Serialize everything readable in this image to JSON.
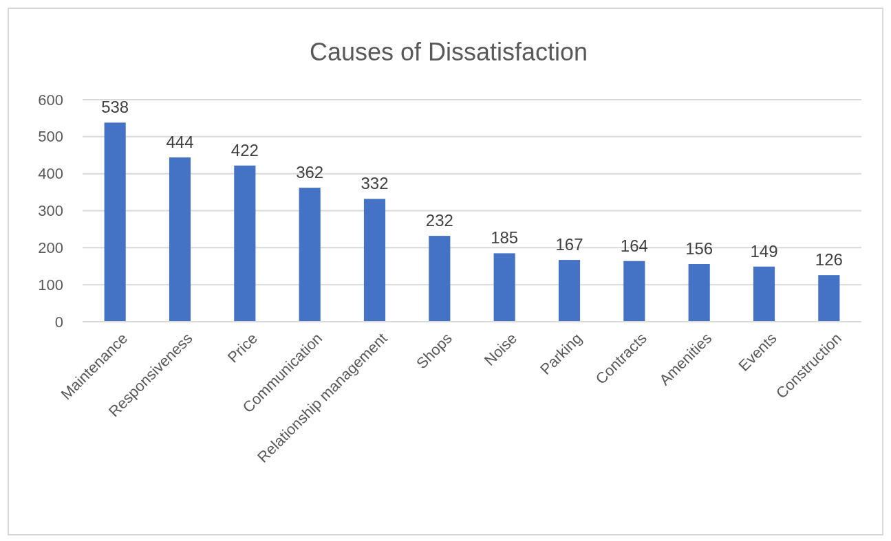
{
  "chart_data": {
    "type": "bar",
    "title": "Causes of Dissatisfaction",
    "categories": [
      "Maintenance",
      "Responsiveness",
      "Price",
      "Communication",
      "Relationship management",
      "Shops",
      "Noise",
      "Parking",
      "Contracts",
      "Amenities",
      "Events",
      "Construction"
    ],
    "values": [
      538,
      444,
      422,
      362,
      332,
      232,
      185,
      167,
      164,
      156,
      149,
      126
    ],
    "color": "#4472c4",
    "ylim": [
      0,
      600
    ],
    "yticks": [
      0,
      100,
      200,
      300,
      400,
      500,
      600
    ],
    "grid": "y",
    "data_labels": true
  }
}
